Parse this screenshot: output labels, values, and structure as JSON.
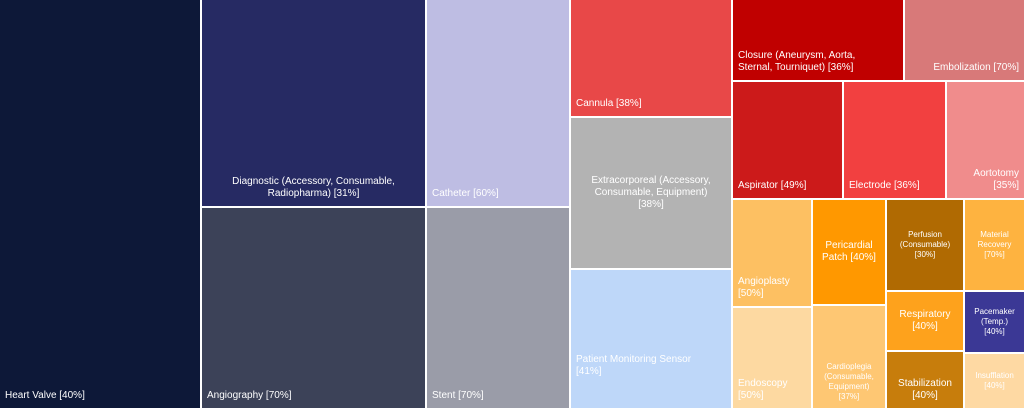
{
  "chart_data": {
    "type": "treemap",
    "title": "",
    "tiles": [
      {
        "name": "Heart Valve",
        "pct": "40%",
        "label": "Heart Valve [40%]",
        "color": "#0d1838",
        "text_color": "#ffffff"
      },
      {
        "name": "Diagnostic (Accessory, Consumable, Radiopharma)",
        "pct": "31%",
        "label": "Diagnostic (Accessory, Consumable,\nRadiopharma) [31%]",
        "color": "#262a63",
        "text_color": "#ffffff"
      },
      {
        "name": "Angiography",
        "pct": "70%",
        "label": "Angiography [70%]",
        "color": "#3c4258",
        "text_color": "#ffffff"
      },
      {
        "name": "Catheter",
        "pct": "60%",
        "label": "Catheter [60%]",
        "color": "#bebde3",
        "text_color": "#ffffff"
      },
      {
        "name": "Stent",
        "pct": "70%",
        "label": "Stent [70%]",
        "color": "#9a9ca8",
        "text_color": "#ffffff"
      },
      {
        "name": "Cannula",
        "pct": "38%",
        "label": "Cannula [38%]",
        "color": "#e84848",
        "text_color": "#ffffff"
      },
      {
        "name": "Extracorporeal (Accessory, Consumable, Equipment)",
        "pct": "38%",
        "label": "Extracorporeal (Accessory,\nConsumable, Equipment)\n[38%]",
        "color": "#b3b3b3",
        "text_color": "#ffffff"
      },
      {
        "name": "Patient Monitoring Sensor",
        "pct": "41%",
        "label": "Patient Monitoring Sensor\n[41%]",
        "color": "#bed7f9",
        "text_color": "#ffffff"
      },
      {
        "name": "Closure (Aneurysm, Aorta, Sternal, Tourniquet)",
        "pct": "36%",
        "label": "Closure (Aneurysm, Aorta,\nSternal, Tourniquet) [36%]",
        "color": "#c00000",
        "text_color": "#ffffff"
      },
      {
        "name": "Embolization",
        "pct": "70%",
        "label": "Embolization [70%]",
        "color": "#d87979",
        "text_color": "#ffffff"
      },
      {
        "name": "Aspirator",
        "pct": "49%",
        "label": "Aspirator [49%]",
        "color": "#cc1a1a",
        "text_color": "#ffffff"
      },
      {
        "name": "Electrode",
        "pct": "36%",
        "label": "Electrode [36%]",
        "color": "#f24040",
        "text_color": "#ffffff"
      },
      {
        "name": "Aortotomy",
        "pct": "35%",
        "label": "Aortotomy\n[35%]",
        "color": "#f08c8c",
        "text_color": "#ffffff"
      },
      {
        "name": "Angioplasty",
        "pct": "50%",
        "label": "Angioplasty\n[50%]",
        "color": "#fdc062",
        "text_color": "#ffffff"
      },
      {
        "name": "Endoscopy",
        "pct": "50%",
        "label": "Endoscopy\n[50%]",
        "color": "#fdd9a1",
        "text_color": "#ffffff"
      },
      {
        "name": "Pericardial Patch",
        "pct": "40%",
        "label": "Pericardial\nPatch [40%]",
        "color": "#ff9800",
        "text_color": "#ffffff"
      },
      {
        "name": "Cardioplegia (Consumable, Equipment)",
        "pct": "37%",
        "label": "Cardioplegia\n(Consumable,\nEquipment)\n[37%]",
        "color": "#fec773",
        "text_color": "#ffffff"
      },
      {
        "name": "Perfusion (Consumable)",
        "pct": "30%",
        "label": "Perfusion\n(Consumable)\n[30%]",
        "color": "#b06a02",
        "text_color": "#ffffff"
      },
      {
        "name": "Material Recovery",
        "pct": "70%",
        "label": "Material\nRecovery\n[70%]",
        "color": "#feb340",
        "text_color": "#ffffff"
      },
      {
        "name": "Respiratory",
        "pct": "40%",
        "label": "Respiratory\n[40%]",
        "color": "#fea21c",
        "text_color": "#ffffff"
      },
      {
        "name": "Pacemaker (Temp.)",
        "pct": "40%",
        "label": "Pacemaker\n(Temp.)\n[40%]",
        "color": "#3b3895",
        "text_color": "#ffffff"
      },
      {
        "name": "Stabilization",
        "pct": "40%",
        "label": "Stabilization\n[40%]",
        "color": "#c77d0c",
        "text_color": "#ffffff"
      },
      {
        "name": "Insufflation",
        "pct": "40%",
        "label": "Insufflation\n[40%]",
        "color": "#fed9a3",
        "text_color": "#ffffff"
      }
    ]
  }
}
